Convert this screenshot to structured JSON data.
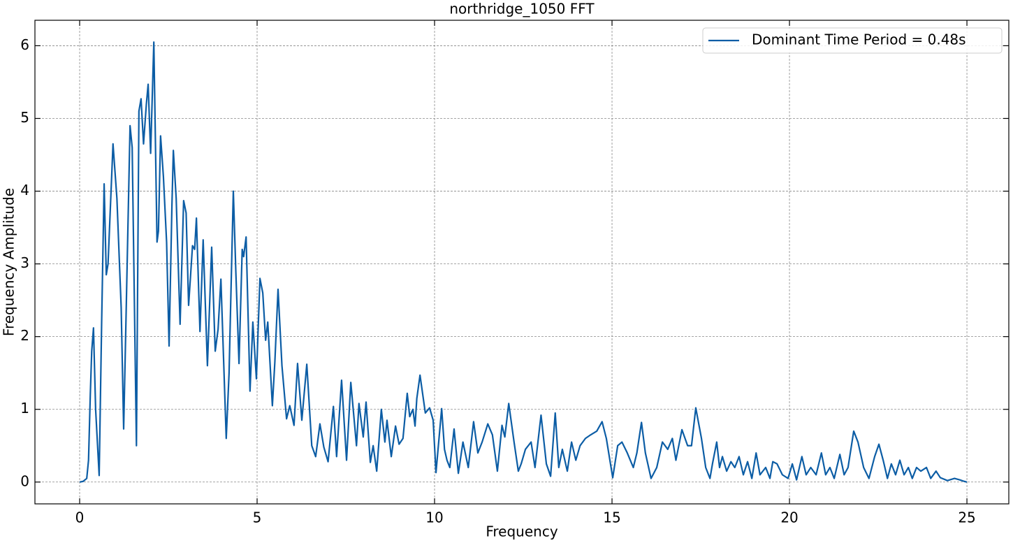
{
  "chart_data": {
    "type": "line",
    "title": "northridge_1050 FFT",
    "x_label": "Frequency",
    "y_label": "Frequency Amplitude",
    "x": [
      0,
      0.1,
      0.2,
      0.25,
      0.3,
      0.34,
      0.39,
      0.45,
      0.55,
      0.62,
      0.69,
      0.75,
      0.8,
      0.94,
      1.05,
      1.17,
      1.24,
      1.3,
      1.42,
      1.48,
      1.6,
      1.67,
      1.73,
      1.8,
      1.88,
      1.93,
      2.0,
      2.09,
      2.18,
      2.22,
      2.28,
      2.36,
      2.45,
      2.52,
      2.6,
      2.64,
      2.72,
      2.83,
      2.93,
      3.0,
      3.07,
      3.18,
      3.24,
      3.29,
      3.39,
      3.48,
      3.6,
      3.72,
      3.82,
      3.9,
      3.98,
      4.13,
      4.21,
      4.33,
      4.4,
      4.49,
      4.58,
      4.62,
      4.69,
      4.8,
      4.88,
      4.98,
      5.08,
      5.16,
      5.24,
      5.3,
      5.43,
      5.5,
      5.59,
      5.7,
      5.83,
      5.92,
      6.04,
      6.14,
      6.26,
      6.4,
      6.54,
      6.65,
      6.77,
      6.88,
      7.0,
      7.15,
      7.24,
      7.38,
      7.52,
      7.64,
      7.8,
      7.87,
      7.99,
      8.07,
      8.19,
      8.27,
      8.37,
      8.5,
      8.6,
      8.66,
      8.78,
      8.9,
      9.0,
      9.11,
      9.23,
      9.3,
      9.39,
      9.45,
      9.5,
      9.59,
      9.74,
      9.86,
      9.96,
      10.04,
      10.2,
      10.28,
      10.35,
      10.43,
      10.55,
      10.67,
      10.8,
      10.95,
      11.1,
      11.22,
      11.34,
      11.5,
      11.63,
      11.77,
      11.9,
      11.98,
      12.09,
      12.24,
      12.36,
      12.44,
      12.56,
      12.72,
      12.83,
      13.0,
      13.15,
      13.27,
      13.4,
      13.5,
      13.6,
      13.74,
      13.86,
      13.98,
      14.1,
      14.25,
      14.4,
      14.57,
      14.72,
      14.84,
      15.02,
      15.16,
      15.28,
      15.43,
      15.6,
      15.7,
      15.83,
      15.94,
      16.1,
      16.26,
      16.42,
      16.57,
      16.7,
      16.8,
      16.97,
      17.13,
      17.24,
      17.36,
      17.52,
      17.64,
      17.76,
      17.83,
      17.95,
      18.03,
      18.11,
      18.23,
      18.35,
      18.46,
      18.58,
      18.7,
      18.82,
      18.94,
      19.06,
      19.17,
      19.33,
      19.45,
      19.53,
      19.65,
      19.8,
      19.96,
      20.08,
      20.2,
      20.35,
      20.47,
      20.6,
      20.75,
      20.9,
      21.02,
      21.14,
      21.26,
      21.42,
      21.54,
      21.65,
      21.81,
      21.93,
      22.09,
      22.24,
      22.4,
      22.52,
      22.64,
      22.76,
      22.87,
      22.99,
      23.11,
      23.23,
      23.35,
      23.46,
      23.58,
      23.7,
      23.86,
      23.98,
      24.13,
      24.25,
      24.45,
      24.65,
      24.8,
      24.92,
      25.0
    ],
    "series": [
      {
        "name": "Dominant Time Period = 0.48s",
        "color": "#0C5DA5",
        "values": [
          0,
          0.01,
          0.05,
          0.3,
          1.2,
          1.8,
          2.12,
          1.0,
          0.09,
          2.2,
          4.1,
          2.85,
          3.0,
          4.65,
          3.9,
          2.4,
          0.73,
          2.1,
          4.9,
          4.6,
          0.5,
          5.1,
          5.27,
          4.65,
          5.2,
          5.47,
          4.52,
          6.05,
          3.3,
          3.45,
          4.76,
          4.2,
          3.3,
          1.87,
          3.8,
          4.56,
          3.9,
          2.17,
          3.87,
          3.7,
          2.43,
          3.25,
          3.2,
          3.63,
          2.07,
          3.33,
          1.6,
          3.23,
          1.8,
          2.1,
          2.79,
          0.6,
          1.5,
          4.0,
          2.9,
          1.63,
          3.2,
          3.1,
          3.37,
          1.25,
          2.2,
          1.42,
          2.8,
          2.6,
          1.95,
          2.2,
          1.05,
          1.65,
          2.65,
          1.6,
          0.87,
          1.05,
          0.78,
          1.63,
          0.85,
          1.62,
          0.5,
          0.35,
          0.8,
          0.48,
          0.28,
          1.04,
          0.35,
          1.4,
          0.3,
          1.37,
          0.5,
          1.08,
          0.62,
          1.1,
          0.27,
          0.5,
          0.15,
          1.0,
          0.55,
          0.85,
          0.35,
          0.77,
          0.52,
          0.6,
          1.22,
          0.9,
          1.0,
          0.77,
          1.15,
          1.47,
          0.95,
          1.02,
          0.85,
          0.13,
          1.01,
          0.45,
          0.3,
          0.2,
          0.73,
          0.12,
          0.55,
          0.2,
          0.83,
          0.4,
          0.55,
          0.8,
          0.65,
          0.15,
          0.78,
          0.62,
          1.08,
          0.55,
          0.15,
          0.25,
          0.45,
          0.55,
          0.2,
          0.92,
          0.25,
          0.08,
          0.95,
          0.2,
          0.45,
          0.15,
          0.55,
          0.3,
          0.5,
          0.6,
          0.65,
          0.7,
          0.83,
          0.6,
          0.06,
          0.5,
          0.55,
          0.4,
          0.2,
          0.4,
          0.82,
          0.4,
          0.05,
          0.2,
          0.55,
          0.45,
          0.6,
          0.3,
          0.72,
          0.5,
          0.5,
          1.02,
          0.6,
          0.2,
          0.05,
          0.25,
          0.55,
          0.2,
          0.35,
          0.15,
          0.28,
          0.2,
          0.35,
          0.1,
          0.28,
          0.05,
          0.4,
          0.1,
          0.2,
          0.05,
          0.28,
          0.25,
          0.1,
          0.05,
          0.25,
          0.03,
          0.35,
          0.1,
          0.2,
          0.1,
          0.4,
          0.1,
          0.2,
          0.05,
          0.38,
          0.1,
          0.2,
          0.7,
          0.55,
          0.2,
          0.05,
          0.35,
          0.52,
          0.3,
          0.05,
          0.25,
          0.1,
          0.3,
          0.1,
          0.2,
          0.05,
          0.2,
          0.15,
          0.2,
          0.05,
          0.15,
          0.06,
          0.02,
          0.05,
          0.03,
          0.01,
          0
        ]
      }
    ],
    "xlim": [
      -1.26,
      26.18
    ],
    "ylim": [
      -0.3,
      6.35
    ],
    "xticks": [
      0,
      5,
      10,
      15,
      20,
      25
    ],
    "yticks": [
      0,
      1,
      2,
      3,
      4,
      5,
      6
    ],
    "grid": true,
    "legend": "upper right"
  }
}
